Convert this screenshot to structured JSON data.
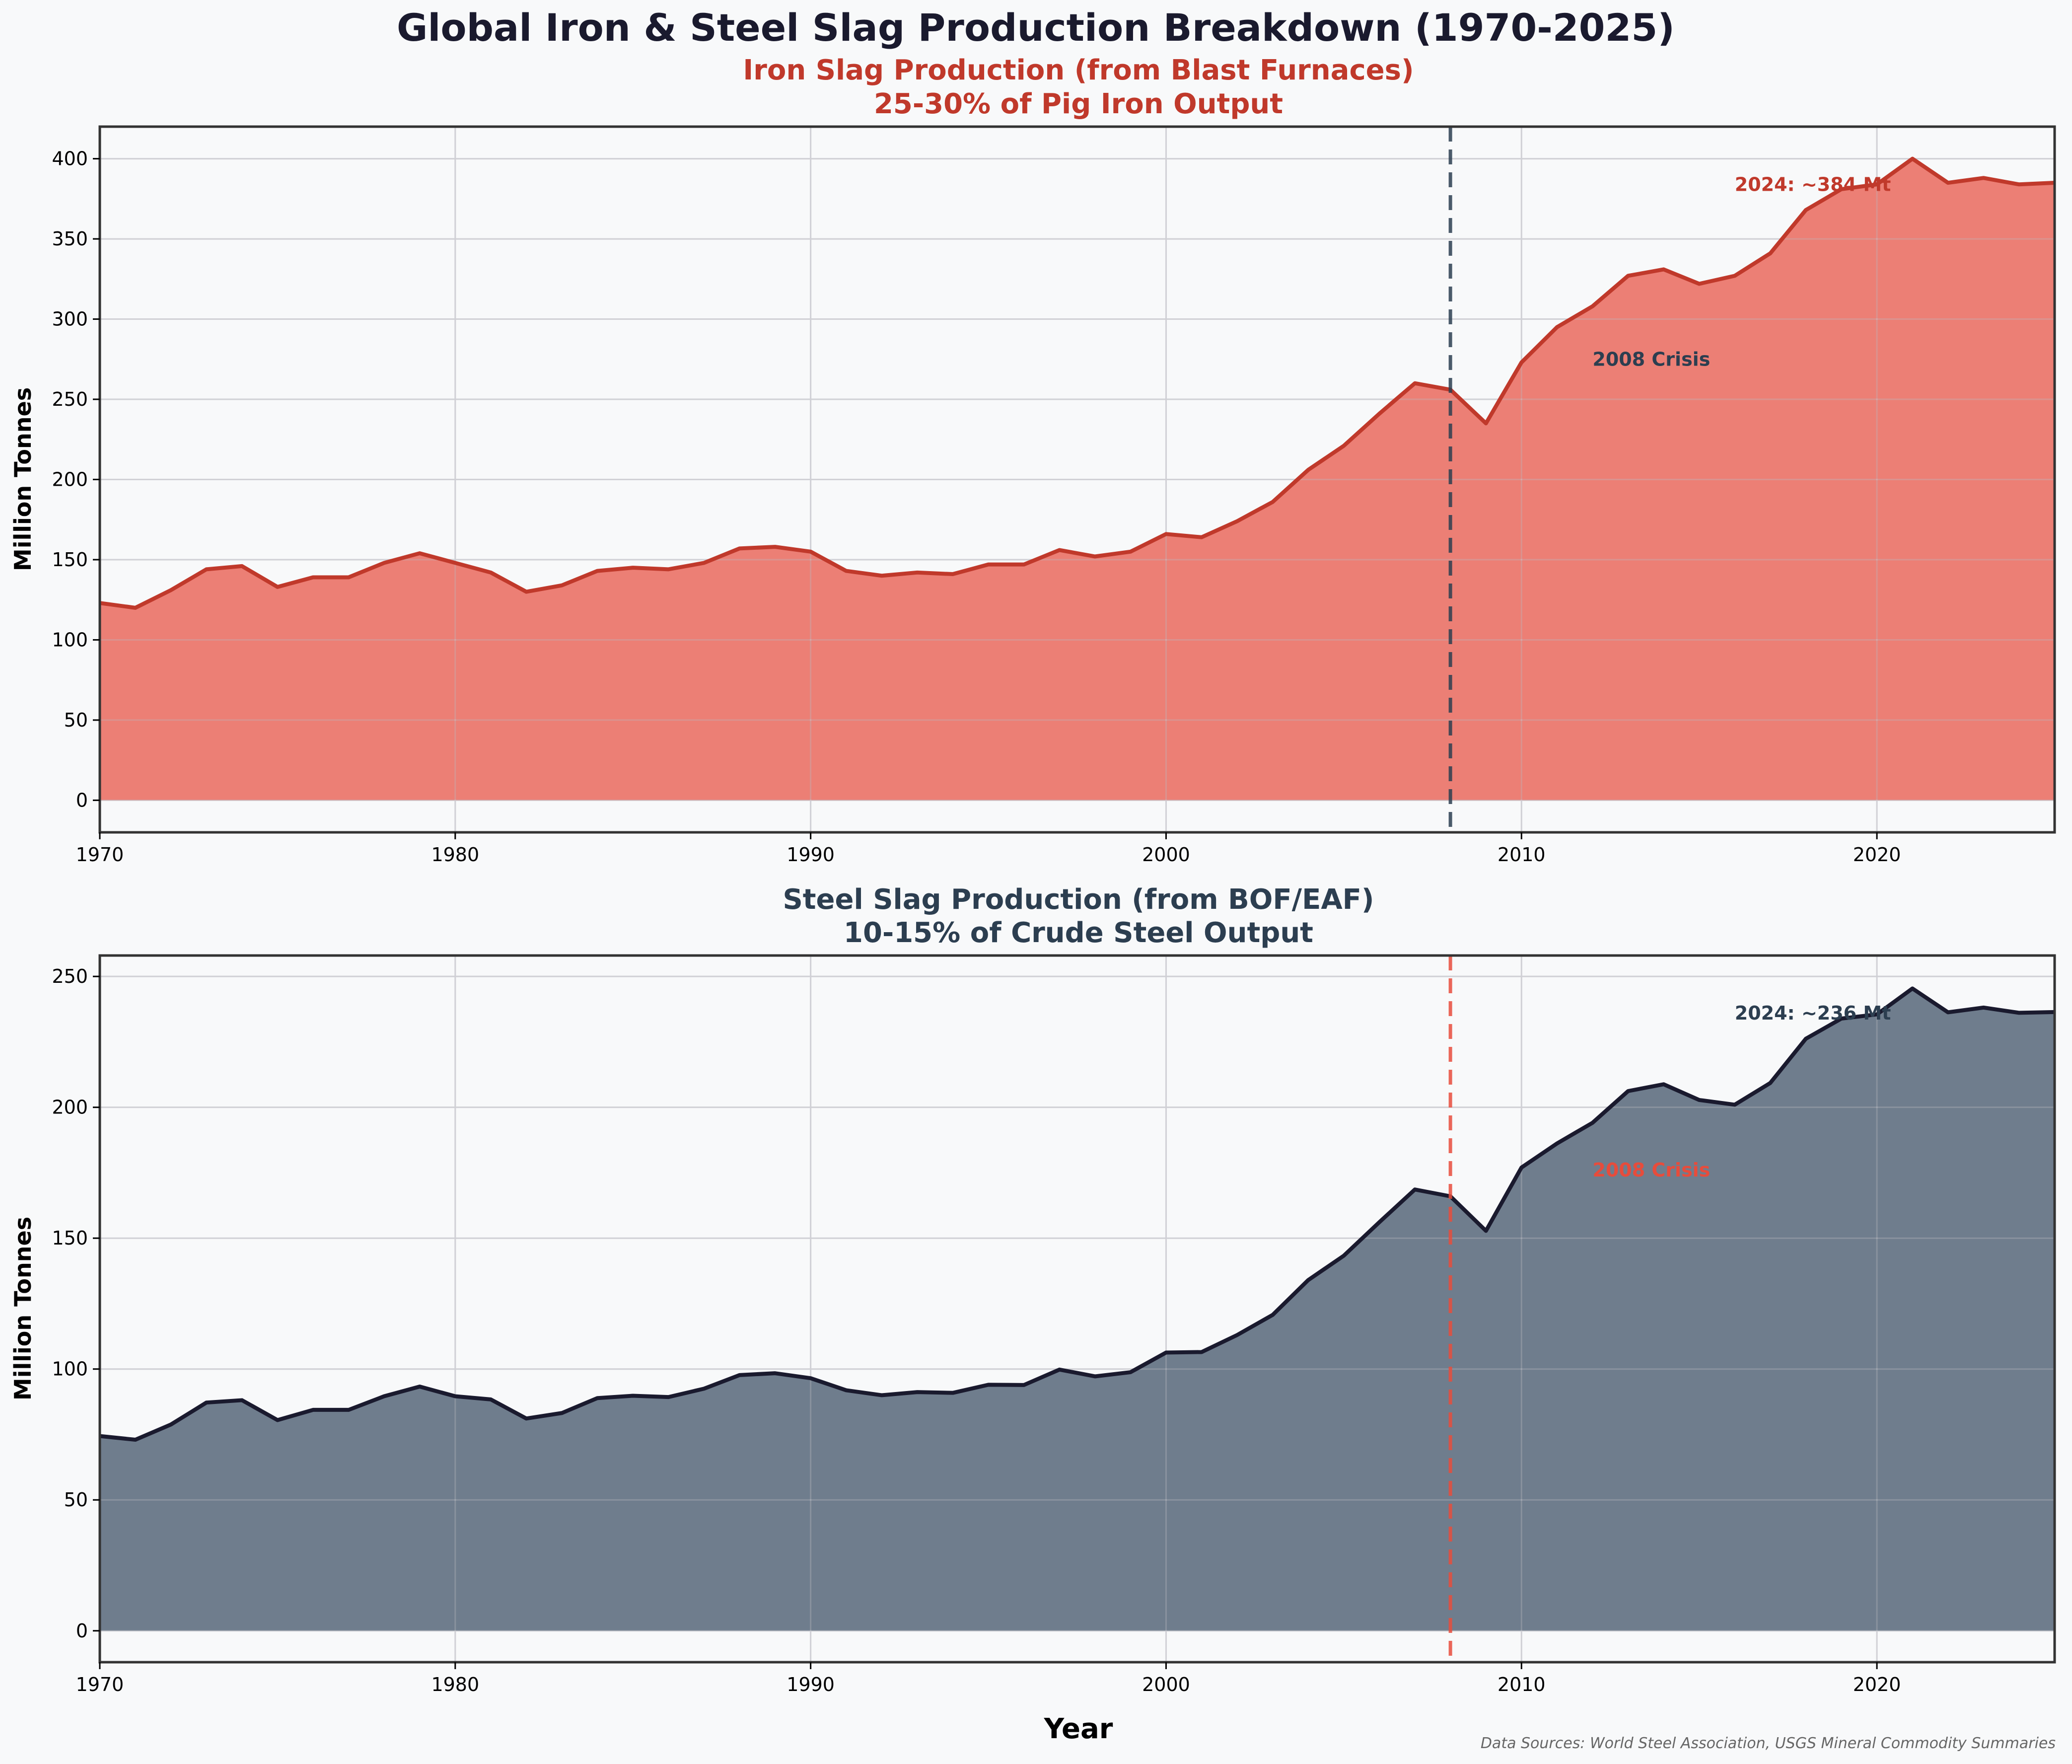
{
  "title": "Global Iron & Steel Slag Production Breakdown (1970-2025)",
  "source_note": "Data Sources: World Steel Association, USGS Mineral Commodity Summaries",
  "chart_data": [
    {
      "type": "area",
      "title_line1": "Iron Slag Production (from Blast Furnaces)",
      "title_line2": "25-30% of Pig Iron Output",
      "xlabel": "",
      "ylabel": "Million Tonnes",
      "xlim": [
        1970,
        2025
      ],
      "ylim": [
        -20,
        420
      ],
      "xticks": [
        1970,
        1980,
        1990,
        2000,
        2010,
        2020
      ],
      "yticks": [
        0,
        50,
        100,
        150,
        200,
        250,
        300,
        350,
        400
      ],
      "grid": true,
      "line_color": "#c0392b",
      "fill_color": "#e74c3c",
      "vline": {
        "x": 2008,
        "color": "#2c3e50",
        "style": "dashed"
      },
      "annotations": [
        {
          "text": "2008 Crisis",
          "x": 2012,
          "y": 275,
          "color": "#2c3e50"
        },
        {
          "text": "2024: ~384 Mt",
          "x": 2016,
          "y": 384,
          "color": "#c0392b"
        }
      ],
      "x": [
        1970,
        1971,
        1972,
        1973,
        1974,
        1975,
        1976,
        1977,
        1978,
        1979,
        1980,
        1981,
        1982,
        1983,
        1984,
        1985,
        1986,
        1987,
        1988,
        1989,
        1990,
        1991,
        1992,
        1993,
        1994,
        1995,
        1996,
        1997,
        1998,
        1999,
        2000,
        2001,
        2002,
        2003,
        2004,
        2005,
        2006,
        2007,
        2008,
        2009,
        2010,
        2011,
        2012,
        2013,
        2014,
        2015,
        2016,
        2017,
        2018,
        2019,
        2020,
        2021,
        2022,
        2023,
        2024,
        2025
      ],
      "values": [
        123,
        120,
        131,
        144,
        146,
        133,
        139,
        139,
        148,
        154,
        148,
        142,
        130,
        134,
        143,
        145,
        144,
        148,
        157,
        158,
        155,
        143,
        140,
        142,
        141,
        147,
        147,
        156,
        152,
        155,
        166,
        164,
        174,
        186,
        206,
        221,
        241,
        260,
        256,
        235,
        273,
        295,
        308,
        327,
        331,
        322,
        327,
        341,
        368,
        381,
        384,
        400,
        385,
        388,
        384,
        385
      ]
    },
    {
      "type": "area",
      "title_line1": "Steel Slag Production (from BOF/EAF)",
      "title_line2": "10-15% of Crude Steel Output",
      "xlabel": "Year",
      "ylabel": "Million Tonnes",
      "xlim": [
        1970,
        2025
      ],
      "ylim": [
        -12,
        258
      ],
      "xticks": [
        1970,
        1980,
        1990,
        2000,
        2010,
        2020
      ],
      "yticks": [
        0,
        50,
        100,
        150,
        200,
        250
      ],
      "grid": true,
      "line_color": "#1a1a2e",
      "fill_color": "#34495e",
      "vline": {
        "x": 2008,
        "color": "#e74c3c",
        "style": "dashed"
      },
      "annotations": [
        {
          "text": "2008 Crisis",
          "x": 2012,
          "y": 176,
          "color": "#e74c3c"
        },
        {
          "text": "2024: ~236 Mt",
          "x": 2016,
          "y": 236,
          "color": "#2c3e50"
        }
      ],
      "x": [
        1970,
        1971,
        1972,
        1973,
        1974,
        1975,
        1976,
        1977,
        1978,
        1979,
        1980,
        1981,
        1982,
        1983,
        1984,
        1985,
        1986,
        1987,
        1988,
        1989,
        1990,
        1991,
        1992,
        1993,
        1994,
        1995,
        1996,
        1997,
        1998,
        1999,
        2000,
        2001,
        2002,
        2003,
        2004,
        2005,
        2006,
        2007,
        2008,
        2009,
        2010,
        2011,
        2012,
        2013,
        2014,
        2015,
        2016,
        2017,
        2018,
        2019,
        2020,
        2021,
        2022,
        2023,
        2024,
        2025
      ],
      "values": [
        74.4,
        73.0,
        78.8,
        87.2,
        88.1,
        80.5,
        84.4,
        84.4,
        89.6,
        93.3,
        89.6,
        88.4,
        81.1,
        83.2,
        88.9,
        89.8,
        89.3,
        92.5,
        97.7,
        98.4,
        96.5,
        91.9,
        90.0,
        91.2,
        90.9,
        94.0,
        93.9,
        99.8,
        97.2,
        98.8,
        106.3,
        106.5,
        113.0,
        120.7,
        134.0,
        143.3,
        156.1,
        168.6,
        166.0,
        152.8,
        177.0,
        186.2,
        194.1,
        206.2,
        208.8,
        202.8,
        201.0,
        209.3,
        226.2,
        233.9,
        235.5,
        245.4,
        236.3,
        238.1,
        236.1,
        236.4
      ]
    }
  ]
}
